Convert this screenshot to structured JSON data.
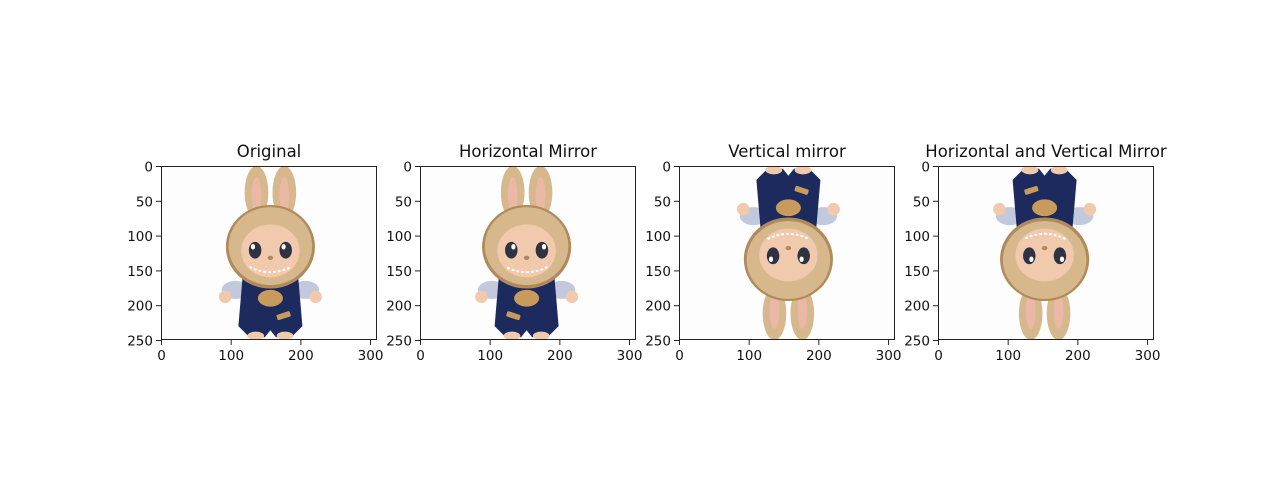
{
  "figure": {
    "panels": [
      {
        "title": "Original",
        "flip_h": false,
        "flip_v": false,
        "x_ticks": [
          "0",
          "100",
          "200",
          "300"
        ],
        "y_ticks": [
          "0",
          "50",
          "100",
          "150",
          "200",
          "250"
        ]
      },
      {
        "title": "Horizontal Mirror",
        "flip_h": true,
        "flip_v": false,
        "x_ticks": [
          "0",
          "100",
          "200",
          "300"
        ],
        "y_ticks": [
          "0",
          "50",
          "100",
          "150",
          "200",
          "250"
        ]
      },
      {
        "title": "Vertical mirror",
        "flip_h": false,
        "flip_v": true,
        "x_ticks": [
          "0",
          "100",
          "200",
          "300"
        ],
        "y_ticks": [
          "0",
          "50",
          "100",
          "150",
          "200",
          "250"
        ]
      },
      {
        "title": "Horizontal and Vertical Mirror",
        "flip_h": true,
        "flip_v": true,
        "x_ticks": [
          "0",
          "100",
          "200",
          "300"
        ],
        "y_ticks": [
          "0",
          "50",
          "100",
          "150",
          "200",
          "250"
        ]
      }
    ],
    "image_subject": "plush-bunny-doll-in-navy-overalls",
    "colors": {
      "background": "#fdfdfd",
      "fur": "#d6b88c",
      "fur_dark": "#b08a5c",
      "face": "#f1c9ac",
      "eye": "#2d3342",
      "overalls": "#1c2a5e",
      "shirt": "#c3c9dc",
      "patch": "#c89a5c",
      "inner_ear": "#eab8a4"
    }
  }
}
